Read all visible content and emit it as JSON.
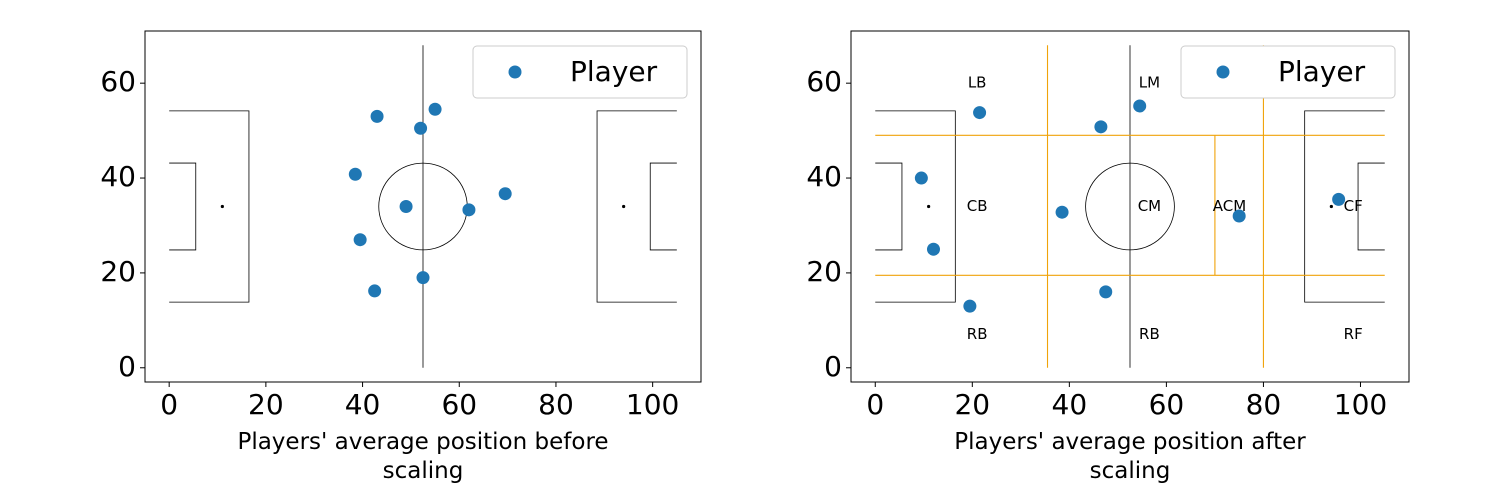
{
  "colors": {
    "player": "#1f77b4",
    "zone": "#f0a30a",
    "pitch": "#000000"
  },
  "chart_data": [
    {
      "type": "scatter",
      "xlabel": [
        "Players' average position before",
        "scaling"
      ],
      "ylabel": "",
      "xlim": [
        -5,
        110
      ],
      "ylim": [
        -3,
        71
      ],
      "xticks": [
        0,
        20,
        40,
        60,
        80,
        100
      ],
      "yticks": [
        0,
        20,
        40,
        60
      ],
      "legend": {
        "entry": "Player",
        "placement": "top-right"
      },
      "grid": false,
      "series": [
        {
          "name": "Player",
          "x": [
            38.5,
            39.5,
            43.0,
            42.5,
            49.0,
            52.0,
            52.5,
            55.0,
            62.0,
            69.5
          ],
          "y": [
            40.8,
            27.0,
            53.0,
            16.2,
            34.0,
            50.5,
            19.0,
            54.5,
            33.3,
            36.7
          ]
        }
      ],
      "zones": []
    },
    {
      "type": "scatter",
      "xlabel": [
        "Players' average position after",
        "scaling"
      ],
      "ylabel": "",
      "xlim": [
        -5,
        110
      ],
      "ylim": [
        -3,
        71
      ],
      "xticks": [
        0,
        20,
        40,
        60,
        80,
        100
      ],
      "yticks": [
        0,
        20,
        40,
        60
      ],
      "legend": {
        "entry": "Player",
        "placement": "top-right"
      },
      "grid": false,
      "series": [
        {
          "name": "Player",
          "x": [
            9.5,
            12.0,
            21.5,
            19.5,
            38.5,
            46.5,
            47.5,
            54.5,
            75.0,
            95.5
          ],
          "y": [
            40.0,
            25.0,
            53.8,
            13.0,
            32.8,
            50.8,
            16.0,
            55.2,
            32.0,
            35.5
          ]
        }
      ],
      "zones": [
        {
          "label": "LB",
          "x": 21.0,
          "y": 60.0
        },
        {
          "label": "LM",
          "x": 56.5,
          "y": 60.0
        },
        {
          "label": "CB",
          "x": 21.0,
          "y": 34.0
        },
        {
          "label": "CM",
          "x": 56.5,
          "y": 34.0
        },
        {
          "label": "ACM",
          "x": 73.0,
          "y": 34.0
        },
        {
          "label": "CF",
          "x": 98.5,
          "y": 34.0
        },
        {
          "label": "RB",
          "x": 21.0,
          "y": 7.0
        },
        {
          "label": "RB",
          "x": 56.5,
          "y": 7.0
        },
        {
          "label": "RF",
          "x": 98.5,
          "y": 7.0
        }
      ],
      "zone_lines": {
        "horizontal_y": [
          19.5,
          49.0
        ],
        "vertical_x": [
          35.5,
          80.0
        ],
        "mid_vertical_x": 70.0
      }
    }
  ]
}
